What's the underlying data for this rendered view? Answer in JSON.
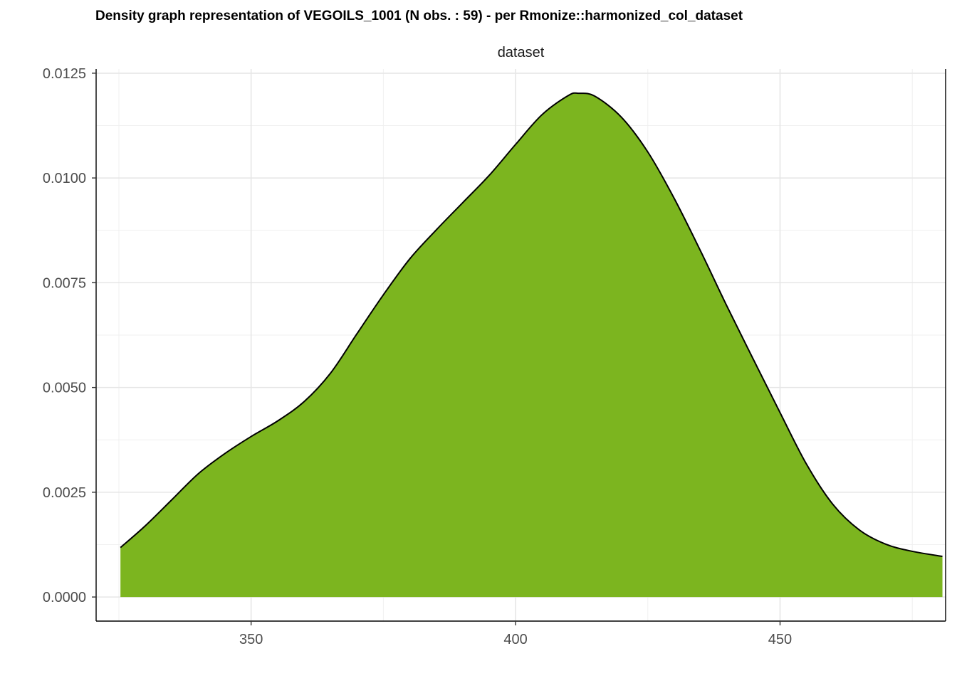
{
  "chart_data": {
    "type": "area",
    "title": "Density graph representation of VEGOILS_1001 (N obs. : 59) - per Rmonize::harmonized_col_dataset",
    "facet_label": "dataset",
    "xlabel": "",
    "ylabel": "",
    "xlim": [
      320.7,
      481.3
    ],
    "ylim": [
      -0.000575,
      0.0126
    ],
    "x_ticks": [
      350,
      400,
      450
    ],
    "x_tick_labels": [
      "350",
      "400",
      "450"
    ],
    "y_ticks": [
      0,
      0.0025,
      0.005,
      0.0075,
      0.01,
      0.0125
    ],
    "y_tick_labels": [
      "0.0000",
      "0.0025",
      "0.0050",
      "0.0075",
      "0.0100",
      "0.0125"
    ],
    "grid": true,
    "fill_color": "#7cb51f",
    "line_color": "#000000",
    "series": [
      {
        "x": [
          325.3,
          330,
          335,
          340,
          345,
          350,
          355,
          360,
          365,
          370,
          375,
          380,
          385,
          390,
          395,
          400,
          405,
          410,
          412,
          415,
          420,
          425,
          430,
          435,
          440,
          445,
          450,
          455,
          460,
          465,
          470,
          475,
          480.7
        ],
        "values": [
          0.00118,
          0.0017,
          0.00232,
          0.00294,
          0.00342,
          0.00383,
          0.0042,
          0.00466,
          0.00534,
          0.00628,
          0.00721,
          0.00807,
          0.00876,
          0.00941,
          0.01006,
          0.0108,
          0.01151,
          0.01197,
          0.01202,
          0.01195,
          0.01145,
          0.01062,
          0.00951,
          0.00825,
          0.00693,
          0.00566,
          0.0044,
          0.00317,
          0.00221,
          0.0016,
          0.00126,
          0.00109,
          0.00097
        ]
      }
    ]
  }
}
